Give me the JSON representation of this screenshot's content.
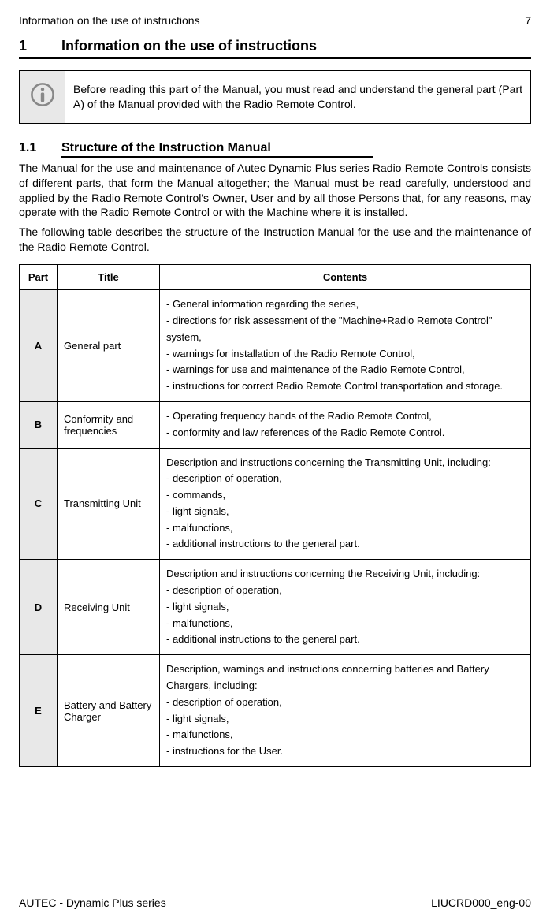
{
  "header": {
    "running_title": "Information on the use of instructions",
    "page_number": "7"
  },
  "section1": {
    "number": "1",
    "title": "Information on the use of instructions"
  },
  "info_box": {
    "icon_name": "info-icon",
    "text": "Before reading this part of the Manual, you must read and understand the general part (Part A) of the Manual provided with the Radio Remote Control."
  },
  "section11": {
    "number": "1.1",
    "title": "Structure of the Instruction Manual"
  },
  "paragraphs": {
    "p1": "The Manual for the use and  maintenance of Autec Dynamic Plus series Radio Remote Controls consists of different parts, that form the Manual altogether; the Manual must be read carefully, understood and applied by the Radio Remote Control's Owner, User and by all those Persons that, for any reasons, may operate with the Radio Remote Control or with the Machine where it is installed.",
    "p2": "The following table describes the structure of the Instruction Manual for the use and the maintenance of the Radio Remote Control."
  },
  "table": {
    "headers": {
      "part": "Part",
      "title": "Title",
      "contents": "Contents"
    },
    "rows": [
      {
        "part": "A",
        "title": "General part",
        "contents": "- General information regarding the series,\n- directions for risk assessment of the \"Machine+Radio Remote Control\" system,\n- warnings for installation of the Radio Remote Control,\n- warnings for use and maintenance of the Radio Remote Control,\n- instructions for correct Radio Remote Control transportation and storage."
      },
      {
        "part": "B",
        "title": "Conformity and frequencies",
        "contents": "- Operating frequency bands of the Radio Remote Control,\n- conformity and law references of the Radio Remote Control."
      },
      {
        "part": "C",
        "title": "Transmitting Unit",
        "contents": "Description and instructions concerning the Transmitting Unit, including:\n- description of operation,\n- commands,\n- light signals,\n- malfunctions,\n- additional instructions to the general part."
      },
      {
        "part": "D",
        "title": "Receiving Unit",
        "contents": "Description and instructions concerning the Receiving Unit, including:\n- description of operation,\n- light signals,\n- malfunctions,\n- additional instructions to the general part."
      },
      {
        "part": "E",
        "title": "Battery and Battery Charger",
        "contents": "Description, warnings and instructions concerning batteries and Battery Chargers, including:\n- description of operation,\n- light signals,\n- malfunctions,\n- instructions for the User."
      }
    ]
  },
  "footer": {
    "left": "AUTEC - Dynamic Plus series",
    "right": "LIUCRD000_eng-00"
  },
  "colors": {
    "shaded_bg": "#e8e8e8",
    "border": "#000000"
  }
}
